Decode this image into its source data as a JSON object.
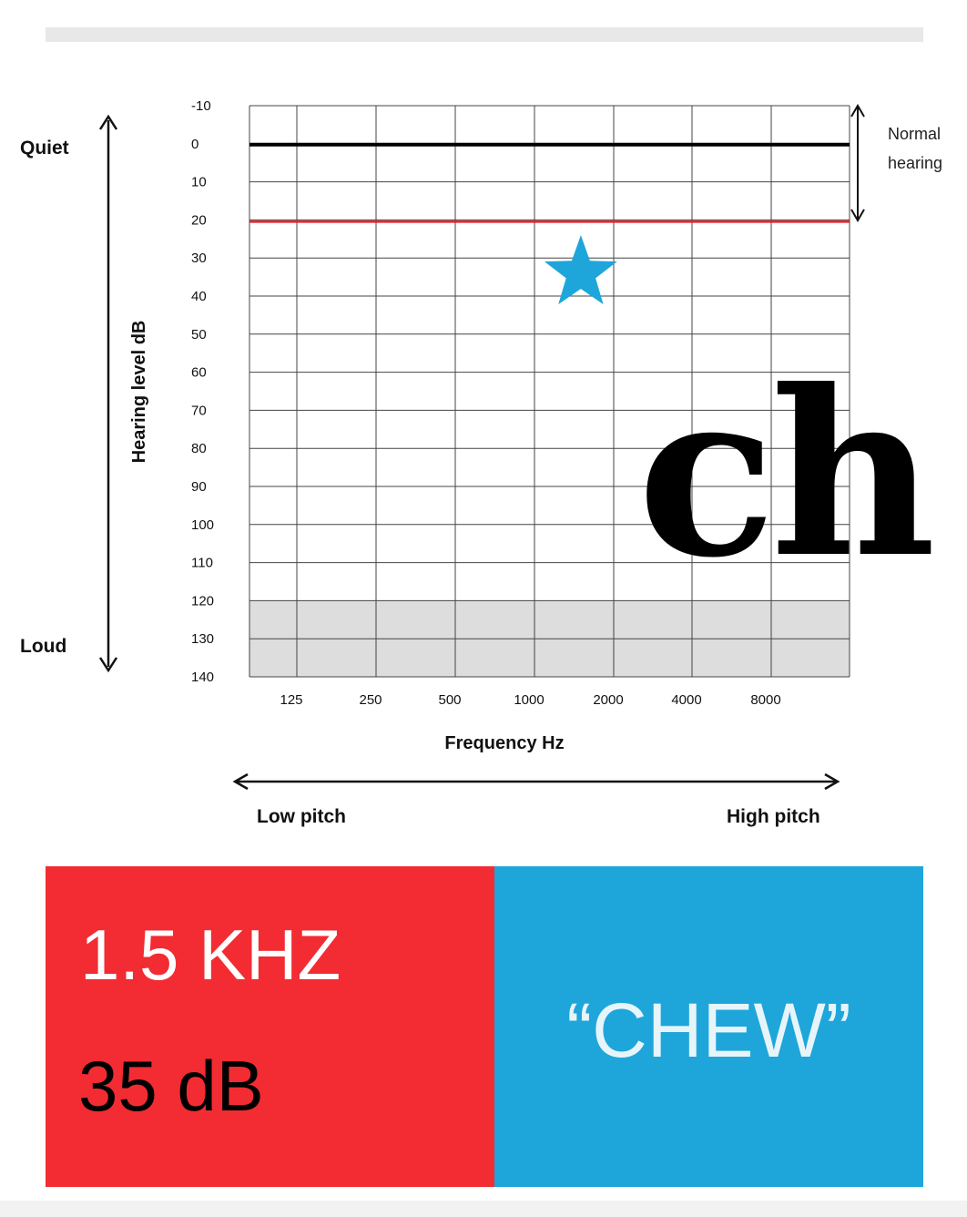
{
  "chart_data": {
    "type": "scatter",
    "xlabel": "Frequency Hz",
    "ylabel": "Hearing level dB",
    "x_ticks": [
      "125",
      "250",
      "500",
      "1000",
      "2000",
      "4000",
      "8000"
    ],
    "y_ticks": [
      "-10",
      "0",
      "10",
      "20",
      "30",
      "40",
      "50",
      "60",
      "70",
      "80",
      "90",
      "100",
      "110",
      "120",
      "130",
      "140"
    ],
    "ylim": [
      -10,
      140
    ],
    "y_inverted": true,
    "x_scale": "log",
    "normal_hearing_range": [
      0,
      20
    ],
    "shaded_range": [
      120,
      140
    ],
    "side_labels": {
      "quiet": "Quiet",
      "loud": "Loud",
      "low_pitch": "Low pitch",
      "high_pitch": "High pitch",
      "normal_hearing": [
        "Normal",
        "hearing"
      ]
    },
    "points": [
      {
        "frequency_hz": 1500,
        "db": 35,
        "marker": "star"
      }
    ],
    "colors": {
      "zero_line": "#000000",
      "limit_line": "#e41e26",
      "marker": "#1ea6da",
      "shade": "#dddddd"
    }
  },
  "overlay_text": "ch",
  "info": {
    "frequency": "1.5 KHZ",
    "level": "35 dB",
    "word": "“CHEW”"
  },
  "colors": {
    "left_panel": "#f22c32",
    "right_panel": "#1ea6da"
  }
}
